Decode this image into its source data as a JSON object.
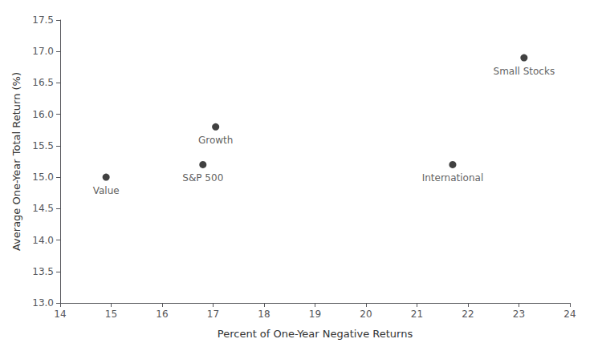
{
  "chart_data": {
    "type": "scatter",
    "x": [
      14.9,
      16.8,
      17.05,
      21.7,
      23.1
    ],
    "values": [
      15.0,
      15.2,
      15.8,
      15.2,
      16.9
    ],
    "labels": [
      "Value",
      "S&P 500",
      "Growth",
      "International",
      "Small Stocks"
    ],
    "color": "#111111",
    "xlabel": "Percent of One-Year Negative Returns",
    "ylabel": "Average One-Year Total Return (%)",
    "xlim": [
      14,
      24
    ],
    "ylim": [
      13.0,
      17.5
    ],
    "xticks": [
      14,
      15,
      16,
      17,
      18,
      19,
      20,
      21,
      22,
      23,
      24
    ],
    "yticks": [
      {
        "value": 13.0,
        "label": "13.0"
      },
      {
        "value": 13.5,
        "label": "13.5"
      },
      {
        "value": 14.0,
        "label": "14.0"
      },
      {
        "value": 14.5,
        "label": "14.5"
      },
      {
        "value": 15.0,
        "label": "15.0"
      },
      {
        "value": 15.5,
        "label": "15.5"
      },
      {
        "value": 16.0,
        "label": "16.0"
      },
      {
        "value": 16.5,
        "label": "16.5"
      },
      {
        "value": 17.0,
        "label": "17.0"
      },
      {
        "value": 17.5,
        "label": "17.5"
      }
    ],
    "grid": false
  }
}
